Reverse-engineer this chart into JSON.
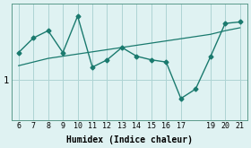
{
  "x_data": [
    6,
    7,
    8,
    9,
    10,
    11,
    12,
    13,
    14,
    15,
    16,
    17,
    18,
    19,
    20,
    21
  ],
  "y_data": [
    1.38,
    1.58,
    1.68,
    1.38,
    1.88,
    1.18,
    1.28,
    1.45,
    1.33,
    1.28,
    1.25,
    0.75,
    0.88,
    1.32,
    1.78,
    1.8
  ],
  "y_trend": [
    1.2,
    1.25,
    1.3,
    1.33,
    1.36,
    1.39,
    1.42,
    1.45,
    1.48,
    1.51,
    1.54,
    1.57,
    1.6,
    1.63,
    1.68,
    1.72
  ],
  "line_color": "#1a7a6e",
  "bg_color": "#dff2f2",
  "grid_color": "#aed4d4",
  "xlabel": "Humidex (Indice chaleur)",
  "ytick_labels": [
    "1"
  ],
  "ytick_values": [
    1.0
  ],
  "xlim": [
    5.5,
    21.5
  ],
  "ylim": [
    0.45,
    2.05
  ],
  "x_ticks": [
    6,
    7,
    8,
    9,
    10,
    11,
    12,
    13,
    14,
    15,
    16,
    17,
    19,
    20,
    21
  ]
}
